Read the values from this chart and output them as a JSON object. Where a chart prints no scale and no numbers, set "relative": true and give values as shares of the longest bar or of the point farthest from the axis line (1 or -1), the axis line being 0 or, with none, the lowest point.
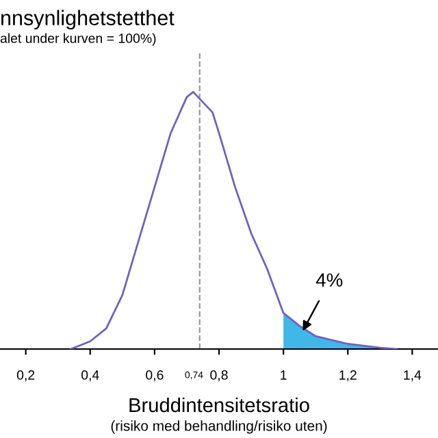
{
  "chart_data": {
    "type": "line",
    "relative": true,
    "title": "nnsynlighetstetthet",
    "subtitle": "alet under kurven = 100%)",
    "xlabel": "Bruddintensitetsratio",
    "annotations": [
      "(risiko med behandling/risiko uten)",
      {
        "text": "4%",
        "x": 1.06,
        "y": 0.07
      }
    ],
    "xlim": [
      0.12,
      1.48
    ],
    "xticks": [
      {
        "value": 0.2,
        "label": "0,2"
      },
      {
        "value": 0.4,
        "label": "0,4"
      },
      {
        "value": 0.6,
        "label": "0,6"
      },
      {
        "value": 0.8,
        "label": "0,8"
      },
      {
        "value": 1,
        "label": "1"
      },
      {
        "value": 1.2,
        "label": "1,2"
      },
      {
        "value": 1.4,
        "label": "1,4"
      }
    ],
    "grid": false,
    "legend": false,
    "marker": "none",
    "line_style": "solid",
    "ref_lines": [
      {
        "axis": "x",
        "value": 0.74,
        "label": "0,74",
        "color": "#999999",
        "line_style": "dashed"
      }
    ],
    "series": [
      {
        "color": "#7060c0",
        "x": [
          0.34,
          0.4,
          0.45,
          0.5,
          0.55,
          0.6,
          0.65,
          0.7,
          0.72,
          0.78,
          0.8,
          0.85,
          0.9,
          0.95,
          1.0,
          1.05,
          1.1,
          1.2,
          1.3,
          1.35
        ],
        "values": [
          0,
          0.03,
          0.08,
          0.21,
          0.42,
          0.63,
          0.84,
          0.98,
          1,
          0.92,
          0.84,
          0.63,
          0.45,
          0.31,
          0.14,
          0.09,
          0.05,
          0.02,
          0.005,
          0
        ]
      },
      {
        "type": "area",
        "color": "#3fb8e8",
        "x": [
          1.0,
          1.05,
          1.1,
          1.2,
          1.3,
          1.35
        ],
        "values": [
          0.14,
          0.09,
          0.05,
          0.02,
          0.005,
          0
        ]
      }
    ]
  }
}
